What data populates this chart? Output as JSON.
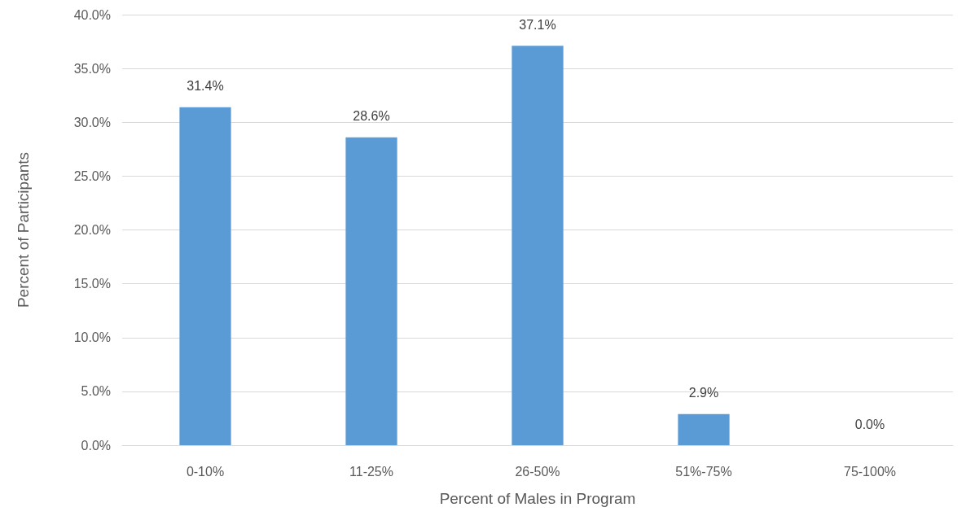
{
  "chart_data": {
    "type": "bar",
    "xlabel": "Percent of Males in Program",
    "ylabel": "Percent of Participants",
    "categories": [
      "0-10%",
      "11-25%",
      "26-50%",
      "51%-75%",
      "75-100%"
    ],
    "values": [
      31.4,
      28.6,
      37.1,
      2.9,
      0.0
    ],
    "value_labels": [
      "31.4%",
      "28.6%",
      "37.1%",
      "2.9%",
      "0.0%"
    ],
    "color": "#5b9bd5",
    "ylim": [
      0,
      40
    ],
    "yticks": [
      {
        "value": 0,
        "label": "0.0%"
      },
      {
        "value": 5,
        "label": "5.0%"
      },
      {
        "value": 10,
        "label": "10.0%"
      },
      {
        "value": 15,
        "label": "15.0%"
      },
      {
        "value": 20,
        "label": "20.0%"
      },
      {
        "value": 25,
        "label": "25.0%"
      },
      {
        "value": 30,
        "label": "30.0%"
      },
      {
        "value": 35,
        "label": "35.0%"
      },
      {
        "value": 40,
        "label": "40.0%"
      }
    ],
    "grid": "y"
  }
}
